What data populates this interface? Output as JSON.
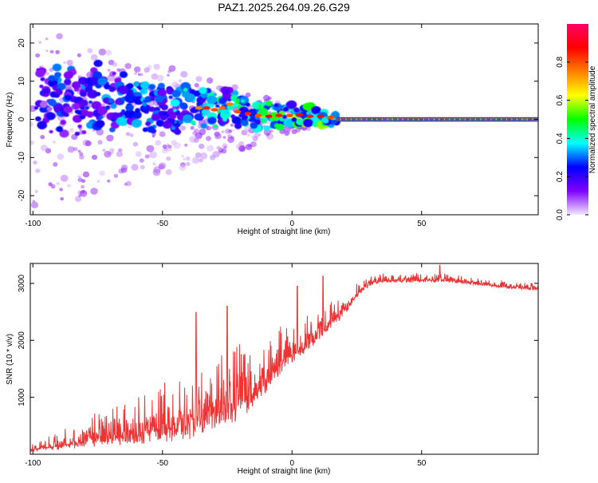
{
  "title": "PAZ1.2025.264.09.26.G29",
  "colors": {
    "snr_line": "#ee3333",
    "spectral_core": "#cc1133",
    "frame": "#000000"
  },
  "chart_data": [
    {
      "type": "heatmap",
      "name": "spectrogram",
      "xlabel": "Height of straight line (km)",
      "ylabel": "Frequency (Hz)",
      "xlim": [
        -101,
        95
      ],
      "ylim": [
        -25,
        25
      ],
      "xticks": [
        -100,
        -50,
        0,
        50
      ],
      "yticks": [
        -20,
        -10,
        0,
        10,
        20
      ],
      "colorbar": {
        "label": "Normalized spectral amplitude",
        "range": [
          0,
          1
        ],
        "ticks": [
          "0.0",
          "0.2",
          "0.4",
          "0.6",
          "0.8"
        ],
        "tick_values": [
          0,
          0.2,
          0.4,
          0.6,
          0.8
        ],
        "colormap": [
          "#f2e6ff",
          "#8000ff",
          "#0000ff",
          "#00ffff",
          "#00ff00",
          "#ffff00",
          "#ff8000",
          "#ff0000",
          "#ff0066"
        ]
      },
      "blobs": [
        {
          "x": -97,
          "f": 6,
          "a": 0.25
        },
        {
          "x": -94,
          "f": 4,
          "a": 0.2
        },
        {
          "x": -91,
          "f": 7,
          "a": 0.3
        },
        {
          "x": -88,
          "f": 3,
          "a": 0.28
        },
        {
          "x": -85,
          "f": 6,
          "a": 0.3
        },
        {
          "x": -82,
          "f": 2,
          "a": 0.26
        },
        {
          "x": -79,
          "f": 5,
          "a": 0.3
        },
        {
          "x": -76,
          "f": 8,
          "a": 0.25
        },
        {
          "x": -73,
          "f": 4,
          "a": 0.3
        },
        {
          "x": -70,
          "f": 3,
          "a": 0.32
        },
        {
          "x": -67,
          "f": 6,
          "a": 0.3
        },
        {
          "x": -64,
          "f": 4,
          "a": 0.33
        },
        {
          "x": -61,
          "f": 3,
          "a": 0.34
        },
        {
          "x": -58,
          "f": 5,
          "a": 0.33
        },
        {
          "x": -55,
          "f": 2,
          "a": 0.3
        },
        {
          "x": -52,
          "f": 4,
          "a": 0.3
        },
        {
          "x": -49,
          "f": 3,
          "a": 0.28
        },
        {
          "x": -46,
          "f": 1,
          "a": 0.3
        },
        {
          "x": -43,
          "f": 3,
          "a": 0.35
        },
        {
          "x": -40,
          "f": 4,
          "a": 0.38
        },
        {
          "x": -36,
          "f": 3,
          "a": 0.4
        },
        {
          "x": -33,
          "f": 3,
          "a": 0.5
        },
        {
          "x": -30,
          "f": 2.5,
          "a": 0.45
        },
        {
          "x": -27,
          "f": 3,
          "a": 0.42
        },
        {
          "x": -24,
          "f": 4,
          "a": 0.4
        },
        {
          "x": -21,
          "f": 2,
          "a": 0.45
        },
        {
          "x": -17,
          "f": 1.5,
          "a": 0.5
        },
        {
          "x": -13,
          "f": 1,
          "a": 0.45
        },
        {
          "x": -9,
          "f": 0.8,
          "a": 0.55
        },
        {
          "x": -5,
          "f": 1,
          "a": 0.5
        },
        {
          "x": -1,
          "f": 1,
          "a": 0.45
        },
        {
          "x": 3,
          "f": 1.2,
          "a": 0.55
        },
        {
          "x": 7,
          "f": 0.8,
          "a": 0.5
        },
        {
          "x": 11,
          "f": 0.8,
          "a": 0.55
        },
        {
          "x": 15,
          "f": 0.5,
          "a": 0.45
        }
      ],
      "narrowband_line": {
        "start_x": 17,
        "end_x": 95,
        "f": 0
      }
    },
    {
      "type": "line",
      "name": "snr",
      "xlabel": "Height of straight line (km)",
      "ylabel": "SNR (10 * v/v)",
      "xlim": [
        -101,
        95
      ],
      "ylim": [
        0,
        3350
      ],
      "xticks": [
        -100,
        -50,
        0,
        50
      ],
      "yticks": [
        1000,
        2000,
        3000
      ],
      "x": [
        -101,
        -90,
        -80,
        -70,
        -60,
        -50,
        -40,
        -30,
        -20,
        -10,
        -5,
        0,
        5,
        10,
        15,
        20,
        25,
        30,
        35,
        40,
        50,
        60,
        70,
        80,
        95
      ],
      "y_base": [
        80,
        150,
        230,
        300,
        360,
        420,
        520,
        700,
        900,
        1250,
        1550,
        1750,
        1900,
        2100,
        2300,
        2500,
        2800,
        3000,
        3050,
        3050,
        3050,
        3050,
        3000,
        2950,
        2900
      ],
      "y_spread": [
        80,
        200,
        320,
        450,
        550,
        650,
        750,
        850,
        850,
        600,
        500,
        450,
        400,
        380,
        320,
        260,
        200,
        130,
        110,
        100,
        100,
        100,
        90,
        90,
        80
      ],
      "y_peaks": [
        {
          "x": 12,
          "y": 3130
        },
        {
          "x": 57,
          "y": 3320
        },
        {
          "x": 2,
          "y": 2950
        },
        {
          "x": -37,
          "y": 2490
        },
        {
          "x": -25,
          "y": 2600
        }
      ]
    }
  ]
}
